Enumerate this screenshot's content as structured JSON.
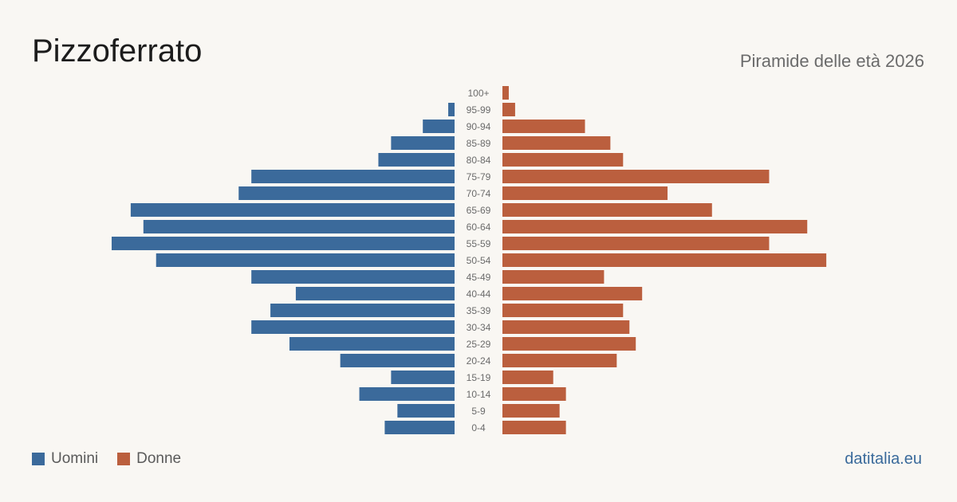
{
  "header": {
    "title": "Pizzoferrato",
    "subtitle": "Piramide delle età 2026"
  },
  "legend": {
    "men_label": "Uomini",
    "women_label": "Donne"
  },
  "source": "datitalia.eu",
  "colors": {
    "men": "#3b6a9b",
    "women": "#bb5f3e"
  },
  "chart_data": {
    "type": "bar",
    "orientation": "horizontal-pyramid",
    "categories": [
      "100+",
      "95-99",
      "90-94",
      "85-89",
      "80-84",
      "75-79",
      "70-74",
      "65-69",
      "60-64",
      "55-59",
      "50-54",
      "45-49",
      "40-44",
      "35-39",
      "30-34",
      "25-29",
      "20-24",
      "15-19",
      "10-14",
      "5-9",
      "0-4"
    ],
    "series": [
      {
        "name": "Uomini",
        "values": [
          0,
          1,
          5,
          10,
          12,
          32,
          34,
          51,
          49,
          54,
          47,
          32,
          25,
          29,
          32,
          26,
          18,
          10,
          15,
          9,
          11
        ]
      },
      {
        "name": "Donne",
        "values": [
          1,
          2,
          13,
          17,
          19,
          42,
          26,
          33,
          48,
          42,
          51,
          16,
          22,
          19,
          20,
          21,
          18,
          8,
          10,
          9,
          10
        ]
      }
    ],
    "xlim": [
      0,
      54
    ]
  }
}
